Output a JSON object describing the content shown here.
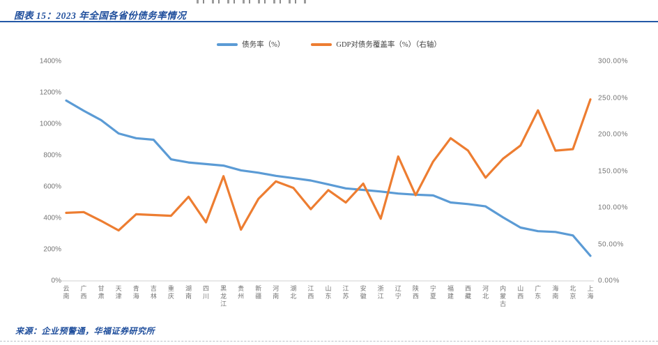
{
  "page": {
    "title": "图表 15：2023 年全国各省份债务率情况",
    "source": "来源：企业预警通，华福证券研究所"
  },
  "colors": {
    "title_text": "#1f4e9c",
    "title_rule": "#2458a6",
    "source_text": "#1f4e9c",
    "axis_text": "#737373",
    "axis_line": "#d9d9d9",
    "series_debt_ratio": "#5b9bd5",
    "series_gdp_coverage": "#ed7d31"
  },
  "chart_data": {
    "type": "line",
    "title": "2023 年全国各省份债务率情况",
    "grid": false,
    "legend_position": "top-center",
    "categories": [
      "云南",
      "广西",
      "甘肃",
      "天津",
      "青海",
      "吉林",
      "重庆",
      "湖南",
      "四川",
      "黑龙江",
      "贵州",
      "新疆",
      "河南",
      "湖北",
      "江西",
      "山东",
      "江苏",
      "安徽",
      "浙江",
      "辽宁",
      "陕西",
      "宁夏",
      "福建",
      "西藏",
      "河北",
      "内蒙古",
      "山西",
      "广东",
      "海南",
      "北京",
      "上海"
    ],
    "series": [
      {
        "name": "债务率（%）",
        "axis": "left",
        "color": "#5b9bd5",
        "values": [
          1150,
          1085,
          1025,
          940,
          910,
          900,
          775,
          755,
          745,
          735,
          705,
          690,
          670,
          655,
          640,
          615,
          590,
          580,
          570,
          557,
          550,
          545,
          500,
          490,
          475,
          405,
          340,
          317,
          312,
          290,
          160
        ]
      },
      {
        "name": "GDP对债务覆盖率（%）（右轴）",
        "axis": "right",
        "color": "#ed7d31",
        "values": [
          93,
          94,
          82,
          69,
          91,
          90,
          89,
          115,
          80,
          143,
          70,
          112,
          136,
          127,
          98,
          124,
          107,
          133,
          85,
          170,
          117,
          163,
          195,
          178,
          141,
          167,
          185,
          233,
          178,
          180,
          248
        ]
      }
    ],
    "left_axis": {
      "min": 0,
      "max": 1400,
      "ticks": [
        "1400%",
        "1200%",
        "1000%",
        "800%",
        "600%",
        "400%",
        "200%",
        "0%"
      ]
    },
    "right_axis": {
      "min": 0,
      "max": 300,
      "ticks": [
        "300.00%",
        "250.00%",
        "200.00%",
        "150.00%",
        "100.00%",
        "50.00%",
        "0.00%"
      ]
    }
  }
}
